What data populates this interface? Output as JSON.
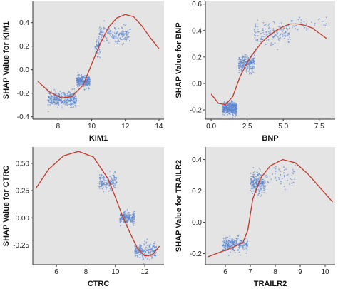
{
  "colors": {
    "panel_bg": "#e4e4e4",
    "point": "#5b86cf",
    "curve": "#c0392b",
    "axis": "#333333"
  },
  "chart_data": [
    {
      "type": "scatter",
      "xlabel": "KIM1",
      "ylabel": "SHAP Value for KIM1",
      "xlim": [
        6.5,
        14.3
      ],
      "ylim": [
        -0.42,
        0.58
      ],
      "xticks": [
        8,
        10,
        12,
        14
      ],
      "yticks": [
        -0.4,
        -0.2,
        0.0,
        0.2,
        0.4
      ],
      "ytick_labels": [
        "-0.4",
        "-0.2",
        "0.0",
        "0.2",
        "0.4"
      ],
      "clusters": [
        {
          "x": [
            7.4,
            9.1
          ],
          "y": -0.25,
          "spread": 0.05,
          "n": 320
        },
        {
          "x": [
            9.1,
            9.9
          ],
          "y": -0.1,
          "spread": 0.04,
          "n": 260
        },
        {
          "x": [
            10.4,
            12.3
          ],
          "y": 0.3,
          "spread": 0.06,
          "n": 180
        },
        {
          "x": [
            10.2,
            10.5
          ],
          "y": 0.18,
          "spread": 0.06,
          "n": 50
        }
      ],
      "trend": [
        [
          6.8,
          -0.1
        ],
        [
          7.5,
          -0.19
        ],
        [
          8.2,
          -0.24
        ],
        [
          8.8,
          -0.23
        ],
        [
          9.5,
          -0.13
        ],
        [
          10.0,
          0.05
        ],
        [
          10.5,
          0.22
        ],
        [
          11.0,
          0.36
        ],
        [
          11.5,
          0.44
        ],
        [
          12.0,
          0.47
        ],
        [
          12.5,
          0.45
        ],
        [
          13.0,
          0.37
        ],
        [
          13.5,
          0.27
        ],
        [
          14.0,
          0.18
        ]
      ]
    },
    {
      "type": "scatter",
      "xlabel": "BNP",
      "ylabel": "SHAP Value for BNP",
      "xlim": [
        -0.4,
        8.6
      ],
      "ylim": [
        -0.27,
        0.62
      ],
      "xticks": [
        0.0,
        2.5,
        5.0,
        7.5
      ],
      "xtick_labels": [
        "0.0",
        "2.5",
        "5.0",
        "7.5"
      ],
      "yticks": [
        -0.2,
        0.0,
        0.2,
        0.4,
        0.6
      ],
      "ytick_labels": [
        "-0.2",
        "0.0",
        "0.2",
        "0.4",
        "0.6"
      ],
      "clusters": [
        {
          "x": [
            0.8,
            1.8
          ],
          "y": -0.19,
          "spread": 0.04,
          "n": 380
        },
        {
          "x": [
            1.9,
            3.0
          ],
          "y": 0.15,
          "spread": 0.05,
          "n": 220
        },
        {
          "x": [
            3.0,
            5.5
          ],
          "y": 0.38,
          "spread": 0.07,
          "n": 150
        },
        {
          "x": [
            5.5,
            8.0
          ],
          "y": 0.44,
          "spread": 0.05,
          "n": 40
        }
      ],
      "trend": [
        [
          0.0,
          -0.08
        ],
        [
          0.5,
          -0.15
        ],
        [
          1.0,
          -0.16
        ],
        [
          1.5,
          -0.1
        ],
        [
          2.0,
          0.05
        ],
        [
          2.5,
          0.16
        ],
        [
          3.0,
          0.24
        ],
        [
          3.5,
          0.31
        ],
        [
          4.0,
          0.36
        ],
        [
          4.5,
          0.4
        ],
        [
          5.0,
          0.43
        ],
        [
          5.5,
          0.45
        ],
        [
          6.0,
          0.45
        ],
        [
          6.5,
          0.44
        ],
        [
          7.0,
          0.42
        ],
        [
          7.5,
          0.38
        ],
        [
          8.0,
          0.34
        ]
      ]
    },
    {
      "type": "scatter",
      "xlabel": "CTRC",
      "ylabel": "SHAP Value for CTRC",
      "xlim": [
        4.4,
        13.3
      ],
      "ylim": [
        -0.43,
        0.65
      ],
      "xticks": [
        6,
        8,
        10,
        12
      ],
      "yticks": [
        -0.25,
        0.0,
        0.25,
        0.5
      ],
      "ytick_labels": [
        "-0.25",
        "0.00",
        "0.25",
        "0.50"
      ],
      "clusters": [
        {
          "x": [
            8.9,
            10.1
          ],
          "y": 0.33,
          "spread": 0.06,
          "n": 150
        },
        {
          "x": [
            10.3,
            11.3
          ],
          "y": 0.0,
          "spread": 0.05,
          "n": 200
        },
        {
          "x": [
            11.3,
            12.8
          ],
          "y": -0.31,
          "spread": 0.06,
          "n": 200
        }
      ],
      "trend": [
        [
          4.6,
          0.27
        ],
        [
          5.5,
          0.45
        ],
        [
          6.5,
          0.57
        ],
        [
          7.5,
          0.61
        ],
        [
          8.5,
          0.56
        ],
        [
          9.5,
          0.36
        ],
        [
          10.0,
          0.19
        ],
        [
          10.5,
          0.01
        ],
        [
          11.0,
          -0.14
        ],
        [
          11.5,
          -0.28
        ],
        [
          12.0,
          -0.35
        ],
        [
          12.5,
          -0.34
        ],
        [
          13.0,
          -0.26
        ]
      ]
    },
    {
      "type": "scatter",
      "xlabel": "TRAILR2",
      "ylabel": "SHAP Value for TRAILR2",
      "xlim": [
        5.2,
        10.4
      ],
      "ylim": [
        -0.27,
        0.48
      ],
      "xticks": [
        6,
        7,
        8,
        9,
        10
      ],
      "yticks": [
        -0.2,
        0.0,
        0.2,
        0.4
      ],
      "ytick_labels": [
        "-0.2",
        "0.0",
        "0.2",
        "0.4"
      ],
      "clusters": [
        {
          "x": [
            5.9,
            6.9
          ],
          "y": -0.14,
          "spread": 0.035,
          "n": 260
        },
        {
          "x": [
            7.0,
            7.6
          ],
          "y": 0.25,
          "spread": 0.06,
          "n": 220
        },
        {
          "x": [
            7.6,
            8.8
          ],
          "y": 0.3,
          "spread": 0.05,
          "n": 60
        }
      ],
      "trend": [
        [
          5.3,
          -0.22
        ],
        [
          5.8,
          -0.19
        ],
        [
          6.3,
          -0.16
        ],
        [
          6.7,
          -0.13
        ],
        [
          6.9,
          -0.05
        ],
        [
          7.1,
          0.15
        ],
        [
          7.4,
          0.28
        ],
        [
          7.8,
          0.36
        ],
        [
          8.3,
          0.4
        ],
        [
          8.8,
          0.38
        ],
        [
          9.3,
          0.31
        ],
        [
          9.8,
          0.22
        ],
        [
          10.3,
          0.13
        ]
      ]
    }
  ]
}
